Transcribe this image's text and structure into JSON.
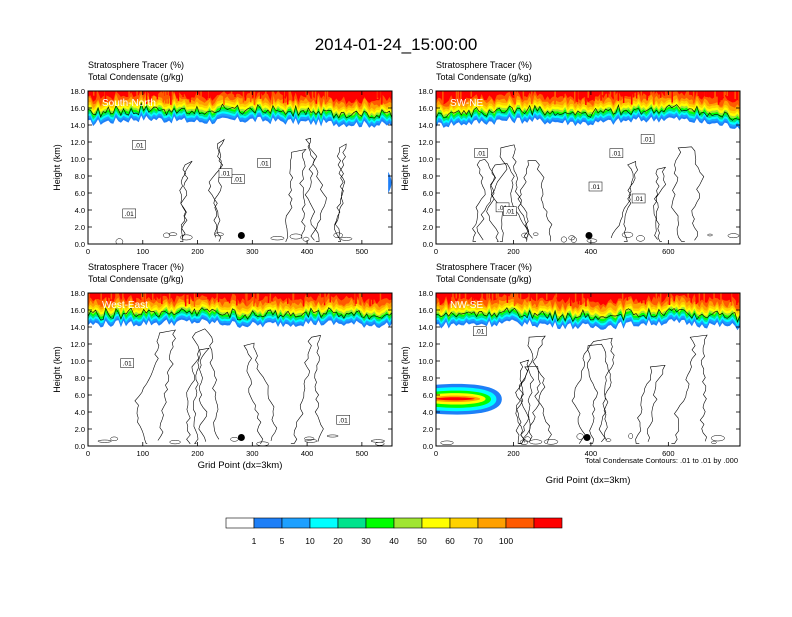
{
  "title": "2014-01-24_15:00:00",
  "footnote": "Total Condensate Contours: .01 to .01 by .000",
  "colorbar": {
    "colors": [
      "#ffffff",
      "#1e7ff7",
      "#1ea0ff",
      "#00ffff",
      "#00e38c",
      "#00ff00",
      "#a0e632",
      "#ffff00",
      "#ffd200",
      "#ffa000",
      "#ff5a00",
      "#ff0000"
    ],
    "labels": [
      "1",
      "5",
      "10",
      "20",
      "30",
      "40",
      "50",
      "60",
      "70",
      "100"
    ]
  },
  "panels": [
    {
      "id": "south-north",
      "label": "South-North",
      "title1": "Stratosphere Tracer   (%)",
      "title2": "Total Condensate   (g/kg)",
      "ylabel": "Height (km)",
      "xlabel": "",
      "xlim": [
        0,
        555
      ],
      "xticks": [
        "0",
        "100",
        "200",
        "300",
        "400",
        "500"
      ],
      "xtick_values": [
        0,
        100,
        200,
        300,
        400,
        500
      ],
      "yticks": [
        "0.0",
        "2.0",
        "4.0",
        "6.0",
        "8.0",
        "10.0",
        "12.0",
        "14.0",
        "16.0",
        "18.0"
      ],
      "contour_labels": [
        ".01",
        ".01",
        ".01",
        ".01",
        ".01"
      ],
      "marker": {
        "x": 280,
        "y": 1.0
      },
      "tropopause": [
        [
          0,
          14.2
        ],
        [
          100,
          14.8
        ],
        [
          200,
          14.4
        ],
        [
          300,
          14.6
        ],
        [
          400,
          14.3
        ],
        [
          555,
          14.0
        ]
      ]
    },
    {
      "id": "sw-ne",
      "label": "SW-NE",
      "title1": "Stratosphere Tracer   (%)",
      "title2": "Total Condensate   (g/kg)",
      "ylabel": "Height (km)",
      "xlabel": "",
      "xlim": [
        0,
        785
      ],
      "xticks": [
        "0",
        "200",
        "400",
        "600"
      ],
      "xtick_values": [
        0,
        200,
        400,
        600
      ],
      "yticks": [
        "0.0",
        "2.0",
        "4.0",
        "6.0",
        "8.0",
        "10.0",
        "12.0",
        "14.0",
        "16.0",
        "18.0"
      ],
      "contour_labels": [
        ".01",
        ".01",
        ".01",
        ".01",
        ".01",
        ".01",
        ".01"
      ],
      "marker": {
        "x": 395,
        "y": 1.0
      },
      "tropopause": [
        [
          0,
          14.0
        ],
        [
          200,
          14.6
        ],
        [
          400,
          14.2
        ],
        [
          600,
          14.8
        ],
        [
          785,
          13.8
        ]
      ]
    },
    {
      "id": "west-east",
      "label": "West-East",
      "title1": "Stratosphere Tracer   (%)",
      "title2": "Total Condensate   (g/kg)",
      "ylabel": "Height (km)",
      "xlabel": "Grid Point (dx=3km)",
      "xlim": [
        0,
        555
      ],
      "xticks": [
        "0",
        "100",
        "200",
        "300",
        "400",
        "500"
      ],
      "xtick_values": [
        0,
        100,
        200,
        300,
        400,
        500
      ],
      "yticks": [
        "0.0",
        "2.0",
        "4.0",
        "6.0",
        "8.0",
        "10.0",
        "12.0",
        "14.0",
        "16.0",
        "18.0"
      ],
      "contour_labels": [
        ".01",
        ".01"
      ],
      "marker": {
        "x": 280,
        "y": 1.0
      },
      "tropopause": [
        [
          0,
          14.3
        ],
        [
          200,
          14.6
        ],
        [
          300,
          14.2
        ],
        [
          400,
          14.5
        ],
        [
          555,
          14.2
        ]
      ]
    },
    {
      "id": "nw-se",
      "label": "NW-SE",
      "title1": "Stratosphere Tracer   (%)",
      "title2": "Total Condensate   (g/kg)",
      "ylabel": "Height (km)",
      "xlabel": "Grid Point (dx=3km)",
      "xlim": [
        0,
        785
      ],
      "xticks": [
        "0",
        "200",
        "400",
        "600"
      ],
      "xtick_values": [
        0,
        200,
        400,
        600
      ],
      "yticks": [
        "0.0",
        "2.0",
        "4.0",
        "6.0",
        "8.0",
        "10.0",
        "12.0",
        "14.0",
        "16.0",
        "18.0"
      ],
      "contour_labels": [
        ".01"
      ],
      "marker": {
        "x": 390,
        "y": 1.0
      },
      "tropopause": [
        [
          0,
          14.2
        ],
        [
          200,
          14.5
        ],
        [
          400,
          14.0
        ],
        [
          600,
          14.6
        ],
        [
          785,
          14.0
        ]
      ]
    }
  ],
  "chart_data": [
    {
      "type": "heatmap",
      "title": "South-North",
      "xlabel": "",
      "ylabel": "Height (km)",
      "xlim": [
        0,
        555
      ],
      "ylim": [
        0,
        18
      ],
      "colorbar_levels": [
        1,
        5,
        10,
        20,
        30,
        40,
        50,
        60,
        70,
        100
      ]
    },
    {
      "type": "heatmap",
      "title": "SW-NE",
      "xlabel": "",
      "ylabel": "Height (km)",
      "xlim": [
        0,
        785
      ],
      "ylim": [
        0,
        18
      ],
      "colorbar_levels": [
        1,
        5,
        10,
        20,
        30,
        40,
        50,
        60,
        70,
        100
      ]
    },
    {
      "type": "heatmap",
      "title": "West-East",
      "xlabel": "Grid Point (dx=3km)",
      "ylabel": "Height (km)",
      "xlim": [
        0,
        555
      ],
      "ylim": [
        0,
        18
      ],
      "colorbar_levels": [
        1,
        5,
        10,
        20,
        30,
        40,
        50,
        60,
        70,
        100
      ]
    },
    {
      "type": "heatmap",
      "title": "NW-SE",
      "xlabel": "Grid Point (dx=3km)",
      "ylabel": "Height (km)",
      "xlim": [
        0,
        785
      ],
      "ylim": [
        0,
        18
      ],
      "colorbar_levels": [
        1,
        5,
        10,
        20,
        30,
        40,
        50,
        60,
        70,
        100
      ]
    }
  ]
}
